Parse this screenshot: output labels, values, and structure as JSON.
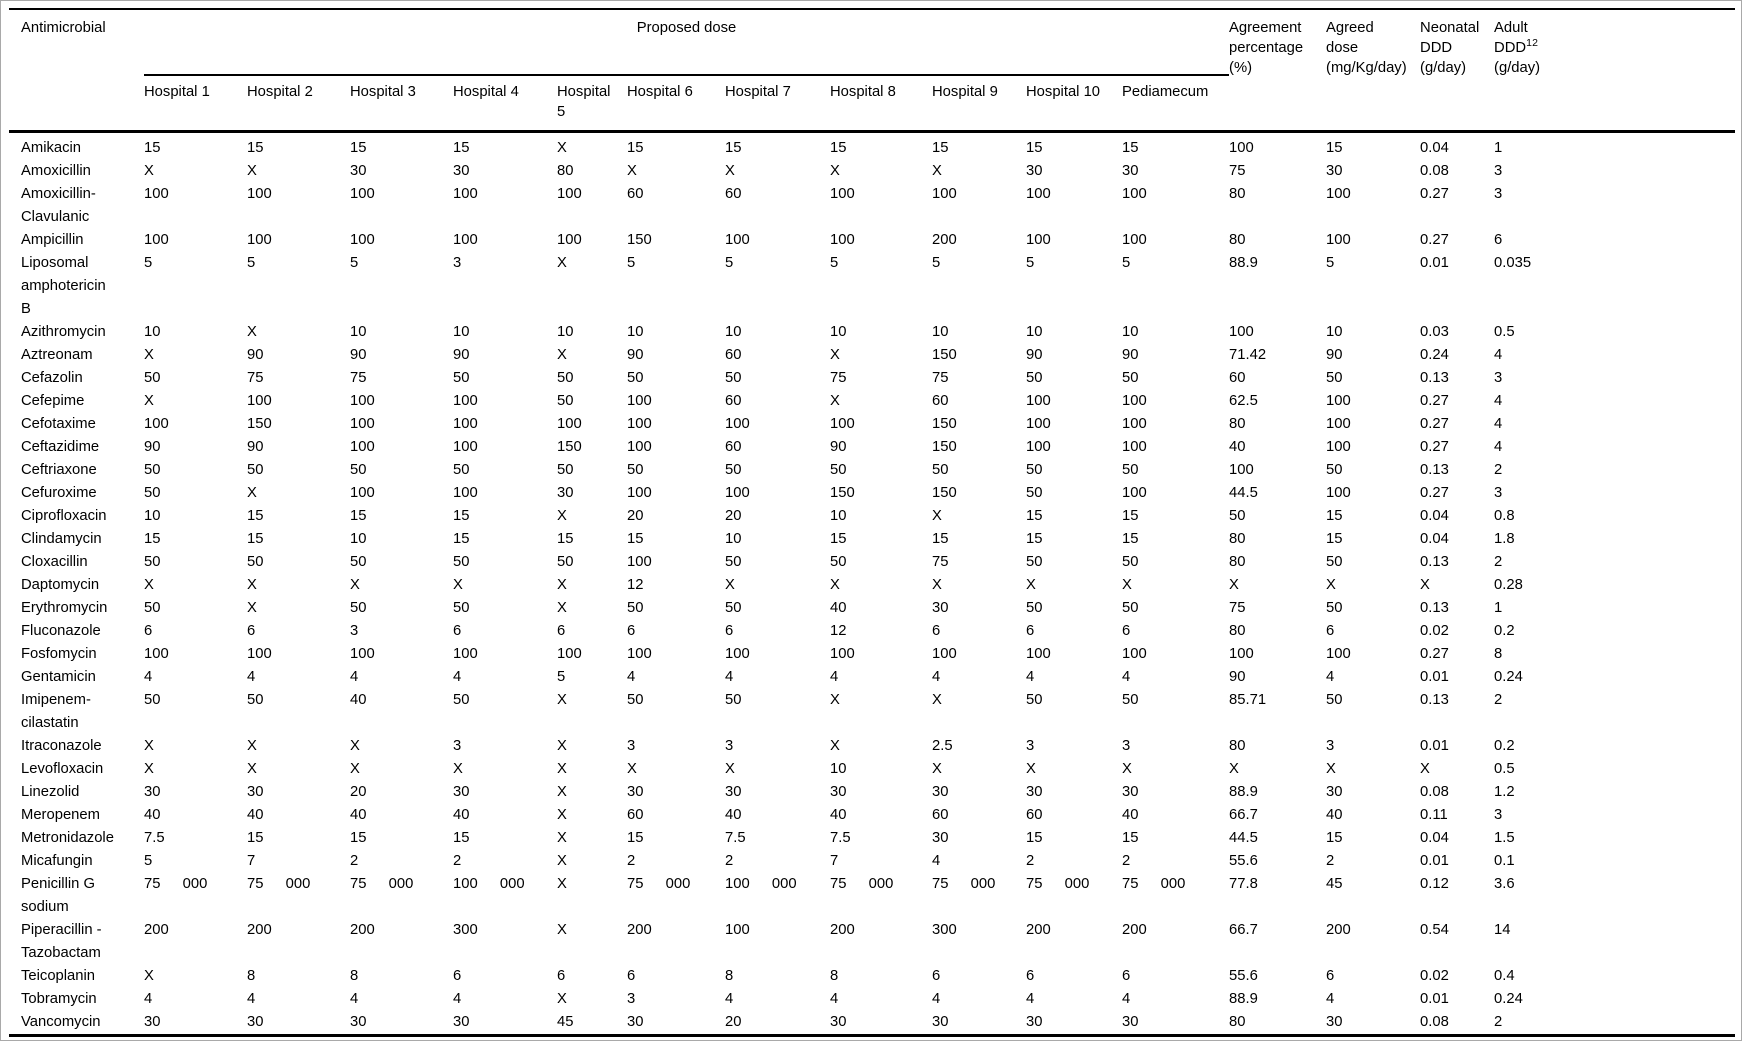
{
  "page": {
    "background_color": "#ffffff",
    "rule_color": "#000000",
    "outer_border_color": "#a9a9a9"
  },
  "table": {
    "antimicrobial_header": "Antimicrobial",
    "group_header": "Proposed dose",
    "sub_headers": [
      "Hospital 1",
      "Hospital 2",
      "Hospital 3",
      "Hospital 4",
      "Hospital\n5",
      "Hospital 6",
      "Hospital 7",
      "Hospital 8",
      "Hospital 9",
      "Hospital 10",
      "Pediamecum"
    ],
    "right_headers": {
      "agreement": "Agreement\npercentage\n(%)",
      "agreed": "Agreed\ndose\n(mg/Kg/day)",
      "neonatal": "Neonatal\nDDD\n(g/day)",
      "adult_main": "Adult\nDDD",
      "adult_sup": "12",
      "adult_rest": "\n(g/day)"
    },
    "rows": [
      {
        "antimicrobial": "Amikacin",
        "values": [
          "15",
          "15",
          "15",
          "15",
          "X",
          "15",
          "15",
          "15",
          "15",
          "15",
          "15",
          "100",
          "15",
          "0.04",
          "1"
        ]
      },
      {
        "antimicrobial": "Amoxicillin",
        "values": [
          "X",
          "X",
          "30",
          "30",
          "80",
          "X",
          "X",
          "X",
          "X",
          "30",
          "30",
          "75",
          "30",
          "0.08",
          "3"
        ]
      },
      {
        "antimicrobial": "Amoxicillin-\nClavulanic",
        "values": [
          "100",
          "100",
          "100",
          "100",
          "100",
          "60",
          "60",
          "100",
          "100",
          "100",
          "100",
          "80",
          "100",
          "0.27",
          "3"
        ]
      },
      {
        "antimicrobial": "Ampicillin",
        "values": [
          "100",
          "100",
          "100",
          "100",
          "100",
          "150",
          "100",
          "100",
          "200",
          "100",
          "100",
          "80",
          "100",
          "0.27",
          "6"
        ]
      },
      {
        "antimicrobial": "Liposomal\namphotericin\nB",
        "values": [
          "5",
          "5",
          "5",
          "3",
          "X",
          "5",
          "5",
          "5",
          "5",
          "5",
          "5",
          "88.9",
          "5",
          "0.01",
          "0.035"
        ]
      },
      {
        "antimicrobial": "Azithromycin",
        "values": [
          "10",
          "X",
          "10",
          "10",
          "10",
          "10",
          "10",
          "10",
          "10",
          "10",
          "10",
          "100",
          "10",
          "0.03",
          "0.5"
        ]
      },
      {
        "antimicrobial": "Aztreonam",
        "values": [
          "X",
          "90",
          "90",
          "90",
          "X",
          "90",
          "60",
          "X",
          "150",
          "90",
          "90",
          "71.42",
          "90",
          "0.24",
          "4"
        ]
      },
      {
        "antimicrobial": "Cefazolin",
        "values": [
          "50",
          "75",
          "75",
          "50",
          "50",
          "50",
          "50",
          "75",
          "75",
          "50",
          "50",
          "60",
          "50",
          "0.13",
          "3"
        ]
      },
      {
        "antimicrobial": "Cefepime",
        "values": [
          "X",
          "100",
          "100",
          "100",
          "50",
          "100",
          "60",
          "X",
          "60",
          "100",
          "100",
          "62.5",
          "100",
          "0.27",
          "4"
        ]
      },
      {
        "antimicrobial": "Cefotaxime",
        "values": [
          "100",
          "150",
          "100",
          "100",
          "100",
          "100",
          "100",
          "100",
          "150",
          "100",
          "100",
          "80",
          "100",
          "0.27",
          "4"
        ]
      },
      {
        "antimicrobial": "Ceftazidime",
        "values": [
          "90",
          "90",
          "100",
          "100",
          "150",
          "100",
          "60",
          "90",
          "150",
          "100",
          "100",
          "40",
          "100",
          "0.27",
          "4"
        ]
      },
      {
        "antimicrobial": "Ceftriaxone",
        "values": [
          "50",
          "50",
          "50",
          "50",
          "50",
          "50",
          "50",
          "50",
          "50",
          "50",
          "50",
          "100",
          "50",
          "0.13",
          "2"
        ]
      },
      {
        "antimicrobial": "Cefuroxime",
        "values": [
          "50",
          "X",
          "100",
          "100",
          "30",
          "100",
          "100",
          "150",
          "150",
          "50",
          "100",
          "44.5",
          "100",
          "0.27",
          "3"
        ]
      },
      {
        "antimicrobial": "Ciprofloxacin",
        "values": [
          "10",
          "15",
          "15",
          "15",
          "X",
          "20",
          "20",
          "10",
          "X",
          "15",
          "15",
          "50",
          "15",
          "0.04",
          "0.8"
        ]
      },
      {
        "antimicrobial": "Clindamycin",
        "values": [
          "15",
          "15",
          "10",
          "15",
          "15",
          "15",
          "10",
          "15",
          "15",
          "15",
          "15",
          "80",
          "15",
          "0.04",
          "1.8"
        ]
      },
      {
        "antimicrobial": "Cloxacillin",
        "values": [
          "50",
          "50",
          "50",
          "50",
          "50",
          "100",
          "50",
          "50",
          "75",
          "50",
          "50",
          "80",
          "50",
          "0.13",
          "2"
        ]
      },
      {
        "antimicrobial": "Daptomycin",
        "values": [
          "X",
          "X",
          "X",
          "X",
          "X",
          "12",
          "X",
          "X",
          "X",
          "X",
          "X",
          "X",
          "X",
          "X",
          "0.28"
        ]
      },
      {
        "antimicrobial": "Erythromycin",
        "values": [
          "50",
          "X",
          "50",
          "50",
          "X",
          "50",
          "50",
          "40",
          "30",
          "50",
          "50",
          "75",
          "50",
          "0.13",
          "1"
        ]
      },
      {
        "antimicrobial": "Fluconazole",
        "values": [
          "6",
          "6",
          "3",
          "6",
          "6",
          "6",
          "6",
          "12",
          "6",
          "6",
          "6",
          "80",
          "6",
          "0.02",
          "0.2"
        ]
      },
      {
        "antimicrobial": "Fosfomycin",
        "values": [
          "100",
          "100",
          "100",
          "100",
          "100",
          "100",
          "100",
          "100",
          "100",
          "100",
          "100",
          "100",
          "100",
          "0.27",
          "8"
        ]
      },
      {
        "antimicrobial": "Gentamicin",
        "values": [
          "4",
          "4",
          "4",
          "4",
          "5",
          "4",
          "4",
          "4",
          "4",
          "4",
          "4",
          "90",
          "4",
          "0.01",
          "0.24"
        ]
      },
      {
        "antimicrobial": "Imipenem-\ncilastatin",
        "values": [
          "50",
          "50",
          "40",
          "50",
          "X",
          "50",
          "50",
          "X",
          "X",
          "50",
          "50",
          "85.71",
          "50",
          "0.13",
          "2"
        ]
      },
      {
        "antimicrobial": "Itraconazole",
        "values": [
          "X",
          "X",
          "X",
          "3",
          "X",
          "3",
          "3",
          "X",
          "2.5",
          "3",
          "3",
          "80",
          "3",
          "0.01",
          "0.2"
        ]
      },
      {
        "antimicrobial": "Levofloxacin",
        "values": [
          "X",
          "X",
          "X",
          "X",
          "X",
          "X",
          "X",
          "10",
          "X",
          "X",
          "X",
          "X",
          "X",
          "X",
          "0.5"
        ]
      },
      {
        "antimicrobial": "Linezolid",
        "values": [
          "30",
          "30",
          "20",
          "30",
          "X",
          "30",
          "30",
          "30",
          "30",
          "30",
          "30",
          "88.9",
          "30",
          "0.08",
          "1.2"
        ]
      },
      {
        "antimicrobial": "Meropenem",
        "values": [
          "40",
          "40",
          "40",
          "40",
          "X",
          "60",
          "40",
          "40",
          "60",
          "60",
          "40",
          "66.7",
          "40",
          "0.11",
          "3"
        ]
      },
      {
        "antimicrobial": "Metronidazole",
        "values": [
          "7.5",
          "15",
          "15",
          "15",
          "X",
          "15",
          "7.5",
          "7.5",
          "30",
          "15",
          "15",
          "44.5",
          "15",
          "0.04",
          "1.5"
        ]
      },
      {
        "antimicrobial": "Micafungin",
        "values": [
          "5",
          "7",
          "2",
          "2",
          "X",
          "2",
          "2",
          "7",
          "4",
          "2",
          "2",
          "55.6",
          "2",
          "0.01",
          "0.1"
        ]
      },
      {
        "antimicrobial": "Penicillin G\nsodium",
        "values": [
          "75  000",
          "75  000",
          "75  000",
          "100  000",
          "X",
          "75  000",
          "100  000",
          "75  000",
          "75  000",
          "75  000",
          "75  000",
          "77.8",
          "45",
          "0.12",
          "3.6"
        ]
      },
      {
        "antimicrobial": "Piperacillin -\nTazobactam",
        "values": [
          "200",
          "200",
          "200",
          "300",
          "X",
          "200",
          "100",
          "200",
          "300",
          "200",
          "200",
          "66.7",
          "200",
          "0.54",
          "14"
        ]
      },
      {
        "antimicrobial": "Teicoplanin",
        "values": [
          "X",
          "8",
          "8",
          "6",
          "6",
          "6",
          "8",
          "8",
          "6",
          "6",
          "6",
          "55.6",
          "6",
          "0.02",
          "0.4"
        ]
      },
      {
        "antimicrobial": "Tobramycin",
        "values": [
          "4",
          "4",
          "4",
          "4",
          "X",
          "3",
          "4",
          "4",
          "4",
          "4",
          "4",
          "88.9",
          "4",
          "0.01",
          "0.24"
        ]
      },
      {
        "antimicrobial": "Vancomycin",
        "values": [
          "30",
          "30",
          "30",
          "30",
          "45",
          "30",
          "20",
          "30",
          "30",
          "30",
          "30",
          "80",
          "30",
          "0.08",
          "2"
        ]
      }
    ]
  }
}
